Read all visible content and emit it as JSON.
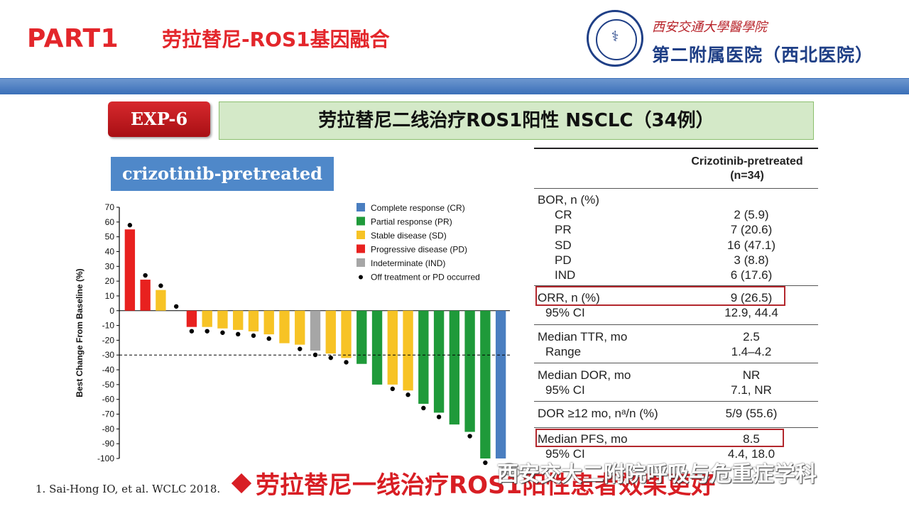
{
  "header": {
    "part_label": "PART1",
    "section_title": "劳拉替尼-ROS1基因融合",
    "logo_school": "西安交通大學醫學院",
    "logo_hospital": "第二附属医院（西北医院）",
    "band_color": "#3a6fb8"
  },
  "slide": {
    "badge": "EXP-6",
    "title": "劳拉替尼二线治疗ROS1阳性 NSCLC（34例）",
    "cohort_label": "crizotinib-pretreated",
    "citation": "1. Sai-Hong IO, et al. WCLC 2018.",
    "conclusion": "劳拉替尼一线治疗ROS1阳性患者效果更好",
    "watermark": "西安交大二附院呼吸与危重症学科"
  },
  "chart_data": {
    "type": "bar",
    "ylabel": "Best Change From Baseline (%)",
    "ylim": [
      -100,
      70
    ],
    "yticks": [
      70,
      60,
      50,
      40,
      30,
      20,
      10,
      0,
      -10,
      -20,
      -30,
      -40,
      -50,
      -60,
      -70,
      -80,
      -90,
      -100
    ],
    "reference_line": -30,
    "legend": [
      {
        "label": "Complete response (CR)",
        "color": "#4a7ec0"
      },
      {
        "label": "Partial response (PR)",
        "color": "#1f9a3a"
      },
      {
        "label": "Stable disease (SD)",
        "color": "#f7c325"
      },
      {
        "label": "Progressive disease (PD)",
        "color": "#e8211f"
      },
      {
        "label": "Indeterminate (IND)",
        "color": "#a6a6a6"
      },
      {
        "label": "Off treatment or PD occurred",
        "color": "#000000",
        "marker": "dot"
      }
    ],
    "bars": [
      {
        "value": 55,
        "response": "PD",
        "off": true
      },
      {
        "value": 21,
        "response": "PD",
        "off": true
      },
      {
        "value": 14,
        "response": "SD",
        "off": true
      },
      {
        "value": 0,
        "response": "SD",
        "off": true
      },
      {
        "value": -11,
        "response": "PD",
        "off": true
      },
      {
        "value": -11,
        "response": "SD",
        "off": true
      },
      {
        "value": -12,
        "response": "SD",
        "off": true
      },
      {
        "value": -13,
        "response": "SD",
        "off": true
      },
      {
        "value": -14,
        "response": "SD",
        "off": true
      },
      {
        "value": -16,
        "response": "SD",
        "off": true
      },
      {
        "value": -22,
        "response": "SD",
        "off": false
      },
      {
        "value": -23,
        "response": "SD",
        "off": true
      },
      {
        "value": -27,
        "response": "IND",
        "off": true
      },
      {
        "value": -29,
        "response": "SD",
        "off": true
      },
      {
        "value": -32,
        "response": "SD",
        "off": true
      },
      {
        "value": -36,
        "response": "PR",
        "off": false
      },
      {
        "value": -50,
        "response": "PR",
        "off": false
      },
      {
        "value": -50,
        "response": "SD",
        "off": true
      },
      {
        "value": -54,
        "response": "SD",
        "off": true
      },
      {
        "value": -63,
        "response": "PR",
        "off": true
      },
      {
        "value": -69,
        "response": "PR",
        "off": true
      },
      {
        "value": -77,
        "response": "PR",
        "off": false
      },
      {
        "value": -82,
        "response": "PR",
        "off": true
      },
      {
        "value": -100,
        "response": "PR",
        "off": true
      },
      {
        "value": -100,
        "response": "CR",
        "off": false
      }
    ]
  },
  "table": {
    "header": "Crizotinib-pretreated\n(n=34)",
    "bor_label": "BOR, n (%)",
    "rows": [
      {
        "label": "CR",
        "value": "2 (5.9)"
      },
      {
        "label": "PR",
        "value": "7 (20.6)"
      },
      {
        "label": "SD",
        "value": "16 (47.1)"
      },
      {
        "label": "PD",
        "value": "3 (8.8)"
      },
      {
        "label": "IND",
        "value": "6 (17.6)"
      }
    ],
    "orr_label": "ORR, n (%)",
    "orr_value": "9 (26.5)",
    "orr_ci_label": "95% CI",
    "orr_ci_value": "12.9, 44.4",
    "ttr_label": "Median TTR, mo",
    "ttr_value": "2.5",
    "ttr_range_label": "Range",
    "ttr_range_value": "1.4–4.2",
    "dor_label": "Median DOR, mo",
    "dor_value": "NR",
    "dor_ci_label": "95% CI",
    "dor_ci_value": "7.1, NR",
    "dor12_label": "DOR ≥12 mo, nᵃ/n (%)",
    "dor12_value": "5/9 (55.6)",
    "pfs_label": "Median PFS, mo",
    "pfs_value": "8.5",
    "pfs_ci_label": "95% CI",
    "pfs_ci_value": "4.4, 18.0"
  }
}
